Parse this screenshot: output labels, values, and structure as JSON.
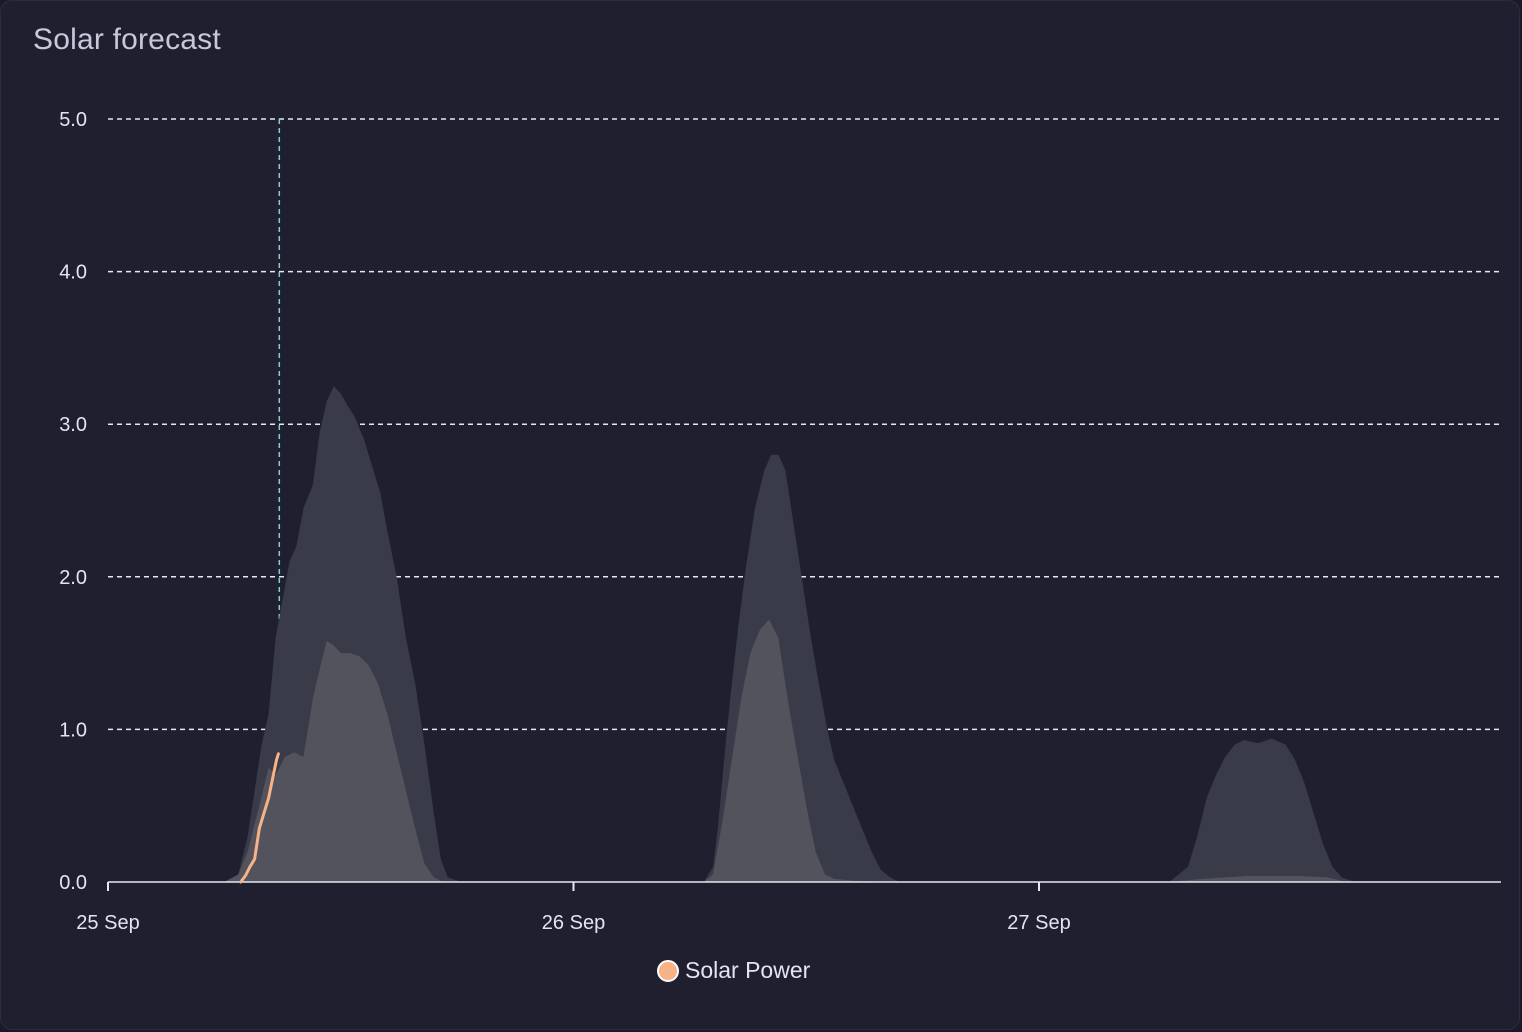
{
  "card": {
    "title": "Solar forecast"
  },
  "chart_data": {
    "type": "area",
    "title": "Solar forecast",
    "xlabel": "",
    "ylabel": "",
    "ylim": [
      0,
      5
    ],
    "y_ticks": [
      "0.0",
      "1.0",
      "2.0",
      "3.0",
      "4.0",
      "5.0"
    ],
    "x_ticks": [
      {
        "day": 0,
        "label": "25 Sep"
      },
      {
        "day": 1,
        "label": "26 Sep"
      },
      {
        "day": 2,
        "label": "27 Sep"
      }
    ],
    "xlim_days": [
      0,
      3.0
    ],
    "grid": true,
    "grid_style": "dashed",
    "now_marker_day": 0.368,
    "legend_position": "bottom-center",
    "colors": {
      "upper_band": "#3a3b49",
      "lower_band": "#52535d",
      "solar_power": "#f7b285",
      "now_marker": "#7fd1c9",
      "grid": "#e8e8f0"
    },
    "series": [
      {
        "name": "",
        "role": "forecast-upper",
        "points": [
          [
            0.25,
            0
          ],
          [
            0.28,
            0.05
          ],
          [
            0.3,
            0.3
          ],
          [
            0.33,
            0.9
          ],
          [
            0.345,
            1.1
          ],
          [
            0.36,
            1.6
          ],
          [
            0.375,
            1.85
          ],
          [
            0.39,
            2.1
          ],
          [
            0.405,
            2.2
          ],
          [
            0.42,
            2.45
          ],
          [
            0.44,
            2.6
          ],
          [
            0.455,
            2.95
          ],
          [
            0.47,
            3.15
          ],
          [
            0.485,
            3.25
          ],
          [
            0.5,
            3.2
          ],
          [
            0.515,
            3.12
          ],
          [
            0.53,
            3.05
          ],
          [
            0.55,
            2.9
          ],
          [
            0.57,
            2.7
          ],
          [
            0.585,
            2.55
          ],
          [
            0.6,
            2.3
          ],
          [
            0.62,
            2.0
          ],
          [
            0.64,
            1.6
          ],
          [
            0.66,
            1.3
          ],
          [
            0.68,
            0.9
          ],
          [
            0.7,
            0.45
          ],
          [
            0.715,
            0.15
          ],
          [
            0.73,
            0.03
          ],
          [
            0.76,
            0
          ],
          [
            1.28,
            0
          ],
          [
            1.3,
            0.1
          ],
          [
            1.31,
            0.35
          ],
          [
            1.325,
            0.85
          ],
          [
            1.34,
            1.3
          ],
          [
            1.355,
            1.7
          ],
          [
            1.37,
            2.05
          ],
          [
            1.39,
            2.45
          ],
          [
            1.41,
            2.7
          ],
          [
            1.425,
            2.8
          ],
          [
            1.44,
            2.8
          ],
          [
            1.455,
            2.7
          ],
          [
            1.47,
            2.4
          ],
          [
            1.49,
            2.0
          ],
          [
            1.51,
            1.6
          ],
          [
            1.53,
            1.25
          ],
          [
            1.545,
            1.0
          ],
          [
            1.56,
            0.8
          ],
          [
            1.58,
            0.65
          ],
          [
            1.6,
            0.5
          ],
          [
            1.62,
            0.35
          ],
          [
            1.64,
            0.2
          ],
          [
            1.66,
            0.08
          ],
          [
            1.68,
            0.03
          ],
          [
            1.7,
            0
          ],
          [
            2.28,
            0
          ],
          [
            2.32,
            0.1
          ],
          [
            2.34,
            0.3
          ],
          [
            2.36,
            0.55
          ],
          [
            2.38,
            0.7
          ],
          [
            2.4,
            0.82
          ],
          [
            2.42,
            0.9
          ],
          [
            2.44,
            0.93
          ],
          [
            2.47,
            0.91
          ],
          [
            2.5,
            0.94
          ],
          [
            2.53,
            0.9
          ],
          [
            2.55,
            0.8
          ],
          [
            2.57,
            0.65
          ],
          [
            2.59,
            0.45
          ],
          [
            2.61,
            0.25
          ],
          [
            2.63,
            0.1
          ],
          [
            2.65,
            0.03
          ],
          [
            2.68,
            0
          ]
        ]
      },
      {
        "name": "",
        "role": "forecast-lower",
        "points": [
          [
            0.25,
            0
          ],
          [
            0.28,
            0.05
          ],
          [
            0.3,
            0.2
          ],
          [
            0.325,
            0.5
          ],
          [
            0.345,
            0.75
          ],
          [
            0.36,
            0.7
          ],
          [
            0.38,
            0.82
          ],
          [
            0.4,
            0.85
          ],
          [
            0.42,
            0.82
          ],
          [
            0.44,
            1.2
          ],
          [
            0.455,
            1.4
          ],
          [
            0.47,
            1.58
          ],
          [
            0.485,
            1.55
          ],
          [
            0.5,
            1.5
          ],
          [
            0.52,
            1.5
          ],
          [
            0.54,
            1.48
          ],
          [
            0.56,
            1.42
          ],
          [
            0.58,
            1.3
          ],
          [
            0.6,
            1.1
          ],
          [
            0.62,
            0.85
          ],
          [
            0.64,
            0.6
          ],
          [
            0.66,
            0.35
          ],
          [
            0.68,
            0.12
          ],
          [
            0.7,
            0.03
          ],
          [
            0.72,
            0
          ],
          [
            1.28,
            0
          ],
          [
            1.3,
            0.05
          ],
          [
            1.32,
            0.4
          ],
          [
            1.34,
            0.8
          ],
          [
            1.36,
            1.2
          ],
          [
            1.38,
            1.5
          ],
          [
            1.4,
            1.65
          ],
          [
            1.42,
            1.72
          ],
          [
            1.44,
            1.6
          ],
          [
            1.46,
            1.2
          ],
          [
            1.48,
            0.85
          ],
          [
            1.5,
            0.5
          ],
          [
            1.52,
            0.2
          ],
          [
            1.54,
            0.05
          ],
          [
            1.56,
            0.02
          ],
          [
            1.6,
            0.01
          ],
          [
            1.66,
            0
          ],
          [
            2.28,
            0
          ],
          [
            2.35,
            0.02
          ],
          [
            2.45,
            0.04
          ],
          [
            2.55,
            0.04
          ],
          [
            2.62,
            0.03
          ],
          [
            2.66,
            0
          ]
        ]
      },
      {
        "name": "Solar Power",
        "role": "actual",
        "points": [
          [
            0.285,
            0
          ],
          [
            0.295,
            0.04
          ],
          [
            0.305,
            0.1
          ],
          [
            0.315,
            0.15
          ],
          [
            0.325,
            0.35
          ],
          [
            0.335,
            0.45
          ],
          [
            0.345,
            0.55
          ],
          [
            0.355,
            0.7
          ],
          [
            0.362,
            0.8
          ],
          [
            0.366,
            0.84
          ]
        ]
      }
    ]
  }
}
